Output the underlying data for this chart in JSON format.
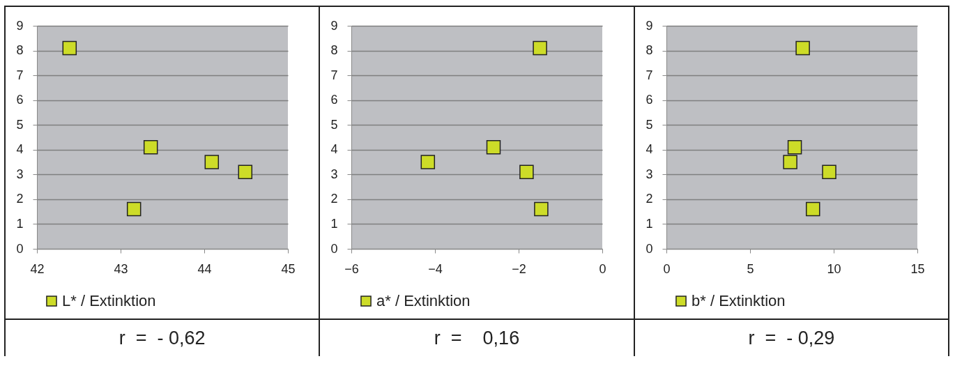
{
  "chart_data": [
    {
      "type": "scatter",
      "x": [
        42.39,
        43.16,
        43.36,
        44.09,
        44.49
      ],
      "series": [
        {
          "name": "L* / Extinktion",
          "color": "#cddc28",
          "values": [
            8.1,
            1.6,
            4.1,
            3.5,
            3.1
          ]
        }
      ],
      "xlim": [
        42,
        45
      ],
      "xticks": [
        42,
        43,
        44,
        45
      ],
      "ylim": [
        0,
        9
      ],
      "yticks": [
        0,
        1,
        2,
        3,
        4,
        5,
        6,
        7,
        8,
        9
      ],
      "grid": "y",
      "legend": "bottom",
      "marker": "square",
      "annotations": [
        "r  =  - 0,62"
      ]
    },
    {
      "type": "scatter",
      "x": [
        -1.49,
        -1.46,
        -2.6,
        -4.17,
        -1.81
      ],
      "series": [
        {
          "name": "a* / Extinktion",
          "color": "#cddc28",
          "values": [
            8.1,
            1.6,
            4.1,
            3.5,
            3.1
          ]
        }
      ],
      "xlim": [
        -6,
        0
      ],
      "xticks": [
        -6,
        -4,
        -2,
        0
      ],
      "ylim": [
        0,
        9
      ],
      "yticks": [
        0,
        1,
        2,
        3,
        4,
        5,
        6,
        7,
        8,
        9
      ],
      "grid": "y",
      "legend": "bottom",
      "marker": "square",
      "annotations": [
        "r  =    0,16"
      ]
    },
    {
      "type": "scatter",
      "x": [
        8.15,
        8.76,
        7.67,
        7.4,
        9.73
      ],
      "series": [
        {
          "name": "b* / Extinktion",
          "color": "#cddc28",
          "values": [
            8.1,
            1.6,
            4.1,
            3.5,
            3.1
          ]
        }
      ],
      "xlim": [
        0,
        15
      ],
      "xticks": [
        0,
        5,
        10,
        15
      ],
      "ylim": [
        0,
        9
      ],
      "yticks": [
        0,
        1,
        2,
        3,
        4,
        5,
        6,
        7,
        8,
        9
      ],
      "grid": "y",
      "legend": "bottom",
      "marker": "square",
      "annotations": [
        "r  =  - 0,29"
      ]
    }
  ]
}
